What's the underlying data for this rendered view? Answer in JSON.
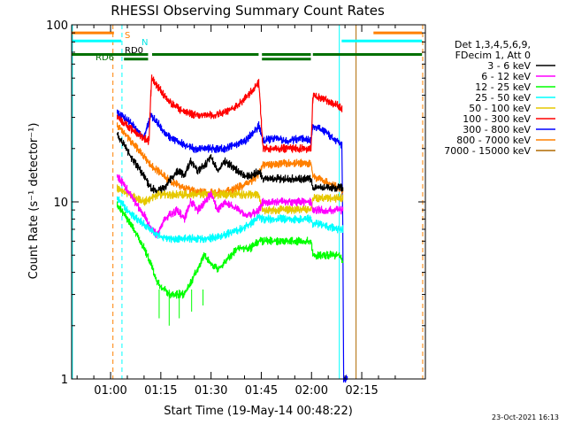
{
  "chart_data": {
    "type": "line",
    "title": "RHESSI Observing Summary Count Rates",
    "xlabel": "Start Time (19-May-14 00:48:22)",
    "ylabel": "Count Rate (s⁻¹ detector⁻¹)",
    "yscale": "log",
    "ylim": [
      1,
      100
    ],
    "xlim_minutes": [
      48.37,
      154.0
    ],
    "y_ticks": [
      {
        "value": 1,
        "label": "1"
      },
      {
        "value": 10,
        "label": "10"
      },
      {
        "value": 100,
        "label": "100"
      }
    ],
    "x_ticks": [
      {
        "minute": 60,
        "label": "01:00"
      },
      {
        "minute": 75,
        "label": "01:15"
      },
      {
        "minute": 90,
        "label": "01:30"
      },
      {
        "minute": 105,
        "label": "01:45"
      },
      {
        "minute": 120,
        "label": "02:00"
      },
      {
        "minute": 135,
        "label": "02:15"
      }
    ],
    "legend": {
      "placement": "right",
      "header": [
        "Det 1,3,4,5,6,9,",
        "FDecim 1, Att 0"
      ],
      "entries": [
        {
          "label": "3 - 6 keV",
          "color": "#000000"
        },
        {
          "label": "6 - 12 keV",
          "color": "#ff00ff"
        },
        {
          "label": "12 - 25 keV",
          "color": "#00ff00"
        },
        {
          "label": "25 - 50 keV",
          "color": "#00ffff"
        },
        {
          "label": "50 - 100 keV",
          "color": "#e6c800"
        },
        {
          "label": "100 - 300 keV",
          "color": "#ff0000"
        },
        {
          "label": "300 - 800 keV",
          "color": "#0000ff"
        },
        {
          "label": "800 - 7000 keV",
          "color": "#ff8000"
        },
        {
          "label": "7000 - 15000 keV",
          "color": "#b06a00"
        }
      ]
    },
    "flag_labels": [
      {
        "text": "S",
        "color": "#ff8000"
      },
      {
        "text": "N",
        "color": "#00e5e5"
      },
      {
        "text": "RD0",
        "color": "#000000"
      },
      {
        "text": "RD6",
        "color": "#007000"
      }
    ],
    "flag_bars": [
      {
        "name": "S",
        "color": "#ff8000",
        "level": 90,
        "segments": [
          [
            48.4,
            61.0
          ],
          [
            138.5,
            153.0
          ]
        ]
      },
      {
        "name": "N",
        "color": "#00ffff",
        "level": 81,
        "segments": [
          [
            48.4,
            63.2
          ],
          [
            129.0,
            153.0
          ]
        ]
      },
      {
        "name": "RD6",
        "color": "#007000",
        "level": 68,
        "segments": [
          [
            48.4,
            71.2
          ],
          [
            72.4,
            104.2
          ],
          [
            105.2,
            119.8
          ],
          [
            120.4,
            153.0
          ]
        ]
      },
      {
        "name": "RD6-low",
        "color": "#007000",
        "level": 64,
        "segments": [
          [
            64.0,
            71.2
          ],
          [
            105.2,
            119.8
          ]
        ]
      }
    ],
    "vertical_markers": [
      {
        "minute": 48.6,
        "color": "#00ffff",
        "style": "solid"
      },
      {
        "minute": 60.7,
        "color": "#ff8000",
        "style": "dashed"
      },
      {
        "minute": 63.4,
        "color": "#00ffff",
        "style": "dashed"
      },
      {
        "minute": 128.3,
        "color": "#00ffff",
        "style": "solid"
      },
      {
        "minute": 133.3,
        "color": "#b06a00",
        "style": "solid"
      },
      {
        "minute": 153.2,
        "color": "#ff8000",
        "style": "dashed"
      }
    ],
    "series": [
      {
        "name": "300 - 800 keV",
        "color": "#0000ff",
        "x": [
          62,
          64,
          66,
          68,
          70,
          72,
          74,
          76,
          78,
          80,
          82,
          85,
          88,
          91,
          94,
          97,
          100,
          103,
          104.3,
          105.5,
          109,
          113,
          117,
          119.9,
          120.4,
          122,
          124,
          126,
          127.5,
          129.2,
          129.6,
          130.8
        ],
        "y": [
          32,
          30,
          28,
          25,
          23,
          31,
          28,
          25,
          23,
          22,
          21,
          20,
          20,
          20,
          20,
          21,
          22,
          25,
          27,
          22,
          23,
          22,
          23,
          22,
          27,
          26,
          25,
          23,
          22,
          21,
          1,
          1
        ]
      },
      {
        "name": "100 - 300 keV",
        "color": "#ff0000",
        "x": [
          62,
          64,
          66,
          68,
          70,
          71.5,
          72.2,
          74,
          76,
          78,
          80,
          82,
          85,
          88,
          91,
          94,
          97,
          100,
          103,
          104.3,
          105.5,
          109,
          113,
          117,
          119.9,
          120.4,
          122,
          124,
          126,
          128,
          129.2
        ],
        "y": [
          30,
          28,
          26,
          24,
          23,
          22,
          50,
          45,
          40,
          36,
          34,
          32,
          31,
          31,
          31,
          32,
          34,
          38,
          44,
          47,
          20,
          20,
          20,
          20,
          20,
          40,
          39,
          38,
          36,
          35,
          33
        ]
      },
      {
        "name": "800 - 7000 keV",
        "color": "#ff8000",
        "x": [
          62,
          64,
          66,
          68,
          70,
          72,
          74,
          76,
          78,
          80,
          82,
          85,
          88,
          91,
          94,
          97,
          100,
          103,
          104.3,
          105.5,
          109,
          113,
          117,
          119.9,
          120.4,
          122,
          124,
          126,
          128,
          129.5
        ],
        "y": [
          27,
          25,
          22,
          20,
          18,
          16,
          15,
          14,
          13,
          12.5,
          12,
          11.5,
          11.3,
          11.3,
          11.4,
          11.8,
          12.5,
          13.5,
          14.5,
          16,
          16.3,
          16.5,
          16.5,
          16.5,
          14,
          13.5,
          13,
          12.5,
          12,
          11.5
        ]
      },
      {
        "name": "3 - 6 keV",
        "color": "#000000",
        "x": [
          62,
          64,
          66,
          68,
          70,
          72,
          74,
          76,
          78,
          80,
          82,
          84,
          86,
          88,
          90,
          92,
          94,
          96,
          98,
          100,
          102,
          104.3,
          105.5,
          109,
          113,
          117,
          119.9,
          120.4,
          122,
          124,
          126,
          128,
          129.5
        ],
        "y": [
          24,
          21,
          18,
          16,
          14,
          12,
          11.5,
          12,
          13.5,
          15,
          14,
          17,
          15,
          16,
          18,
          15,
          17,
          16,
          15,
          14,
          14,
          15,
          13.5,
          13.5,
          13.5,
          13.5,
          13.5,
          12,
          12,
          12,
          12,
          12,
          12
        ]
      },
      {
        "name": "50 - 100 keV",
        "color": "#e6c800",
        "x": [
          62,
          64,
          66,
          68,
          70,
          72,
          74,
          76,
          78,
          80,
          82,
          85,
          88,
          91,
          94,
          97,
          100,
          103,
          104.3,
          105.5,
          109,
          113,
          117,
          119.9,
          120.4,
          122,
          124,
          126,
          128,
          129.5
        ],
        "y": [
          12,
          11.5,
          11,
          10.5,
          10,
          10.5,
          11,
          11,
          11,
          11,
          11,
          11,
          11,
          11,
          11,
          11,
          11,
          11,
          11,
          9,
          9,
          9,
          9,
          9,
          10.5,
          10.5,
          10.5,
          10.5,
          10.5,
          10.5
        ]
      },
      {
        "name": "6 - 12 keV",
        "color": "#ff00ff",
        "x": [
          62,
          64,
          66,
          68,
          70,
          72,
          74,
          76,
          78,
          80,
          82,
          84,
          86,
          88,
          90,
          92,
          94,
          96,
          98,
          100,
          102,
          104.3,
          105.5,
          109,
          113,
          117,
          119.9,
          120.4,
          122,
          124,
          126,
          128,
          129.5
        ],
        "y": [
          14,
          12.5,
          11,
          9.5,
          8.5,
          7,
          6.5,
          8,
          8.5,
          9,
          8,
          10,
          9,
          10,
          11,
          9,
          10,
          9.5,
          9,
          8.5,
          8.5,
          9,
          10,
          10,
          10,
          10,
          10,
          9,
          9,
          9,
          9,
          9,
          9
        ]
      },
      {
        "name": "25 - 50 keV",
        "color": "#00ffff",
        "x": [
          62,
          64,
          66,
          68,
          70,
          72,
          74,
          76,
          78,
          80,
          82,
          85,
          88,
          91,
          94,
          97,
          100,
          103,
          104.3,
          105.5,
          109,
          113,
          117,
          119.9,
          120.4,
          122,
          124,
          126,
          128,
          129.5
        ],
        "y": [
          10.5,
          9.5,
          8.5,
          8,
          7.5,
          7,
          6.5,
          6.3,
          6.2,
          6.2,
          6.2,
          6.2,
          6.2,
          6.3,
          6.5,
          6.8,
          7.2,
          7.8,
          8.2,
          8,
          8,
          8,
          8,
          8,
          7.5,
          7.5,
          7.3,
          7.2,
          7,
          7
        ]
      },
      {
        "name": "12 - 25 keV",
        "color": "#00ff00",
        "x": [
          62,
          64,
          66,
          68,
          70,
          72,
          74,
          76,
          78,
          80,
          82,
          84,
          86,
          88,
          90,
          92,
          94,
          96,
          98,
          100,
          102,
          104.3,
          105.5,
          109,
          113,
          117,
          119.9,
          120.4,
          122,
          124,
          126,
          128,
          129.5
        ],
        "y": [
          9.5,
          8.5,
          7.5,
          6.5,
          5.5,
          4.5,
          3.5,
          3.2,
          3,
          3,
          3,
          3.5,
          4.2,
          5,
          4.5,
          4.2,
          4.5,
          5,
          5.5,
          5.5,
          5.5,
          6,
          6,
          6,
          6,
          6,
          6,
          5,
          5,
          5,
          5,
          5,
          4.6
        ]
      },
      {
        "name": "7000 - 15000 keV",
        "color": "#b06a00",
        "x": [],
        "y": []
      }
    ]
  },
  "footer_date": "23-Oct-2021 16:13"
}
